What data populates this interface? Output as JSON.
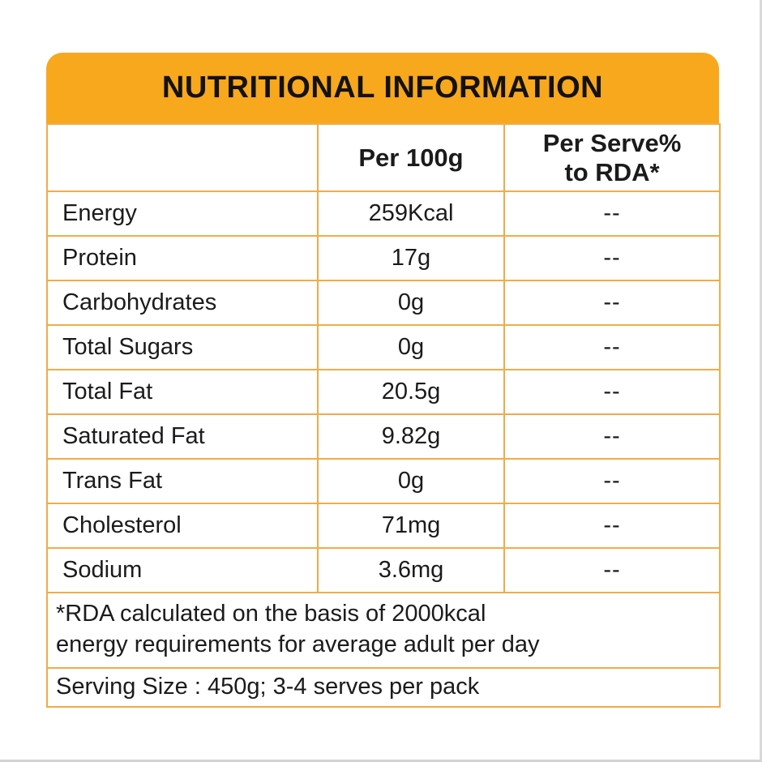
{
  "label": {
    "title": "NUTRITIONAL INFORMATION",
    "columns": {
      "item": "",
      "per_100g": "Per 100g",
      "per_serve_line1": "Per Serve%",
      "per_serve_line2": "to RDA*"
    },
    "rows": [
      {
        "name": "Energy",
        "per_100g": "259Kcal",
        "per_serve": "--"
      },
      {
        "name": "Protein",
        "per_100g": "17g",
        "per_serve": "--"
      },
      {
        "name": "Carbohydrates",
        "per_100g": "0g",
        "per_serve": "--"
      },
      {
        "name": "Total Sugars",
        "per_100g": "0g",
        "per_serve": "--"
      },
      {
        "name": "Total Fat",
        "per_100g": "20.5g",
        "per_serve": "--"
      },
      {
        "name": "Saturated Fat",
        "per_100g": "9.82g",
        "per_serve": "--"
      },
      {
        "name": "Trans Fat",
        "per_100g": "0g",
        "per_serve": "--"
      },
      {
        "name": "Cholesterol",
        "per_100g": "71mg",
        "per_serve": "--"
      },
      {
        "name": "Sodium",
        "per_100g": "3.6mg",
        "per_serve": "--"
      }
    ],
    "footnote_line1": "*RDA calculated on the basis of 2000kcal",
    "footnote_line2": "energy requirements for average adult per day",
    "serving_info": "Serving Size : 450g; 3-4 serves per pack",
    "colors": {
      "header_background": "#F8A81C",
      "grid_border": "#F0AC49",
      "text": "#1B1B1B"
    }
  }
}
